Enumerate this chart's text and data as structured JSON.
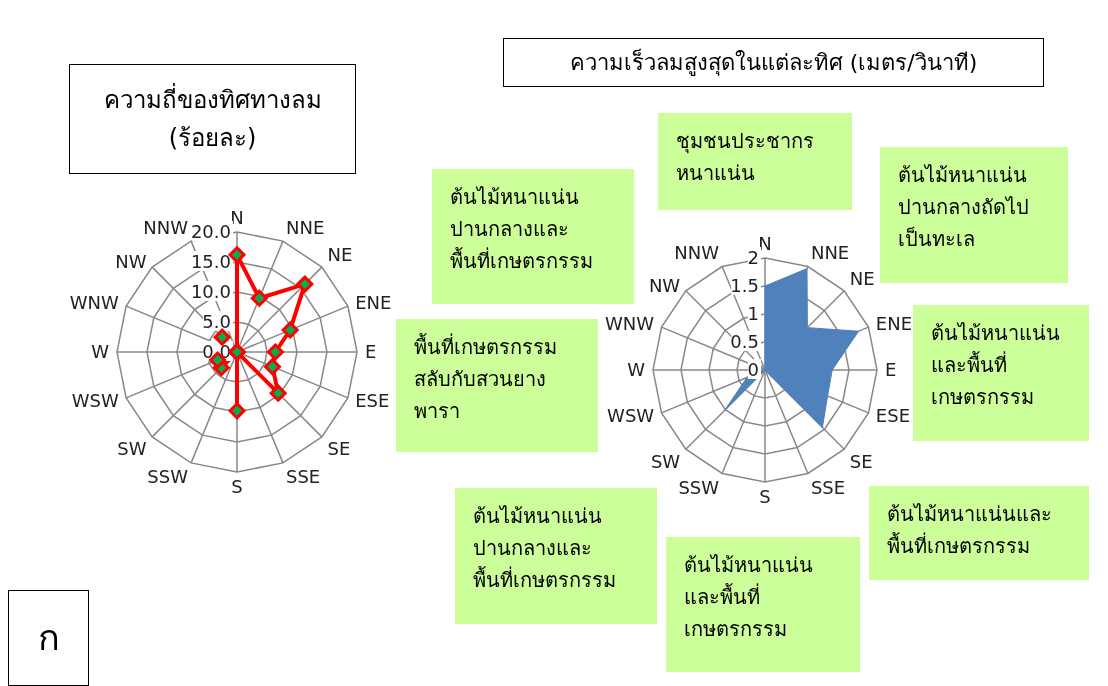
{
  "chart_data": [
    {
      "type": "radar",
      "title": "ความถี่ของทิศทางลม\n(ร้อยละ)",
      "categories": [
        "N",
        "NNE",
        "NE",
        "ENE",
        "E",
        "ESE",
        "SE",
        "SSE",
        "S",
        "SSW",
        "SW",
        "WSW",
        "W",
        "WNW",
        "NW",
        "NNW"
      ],
      "series": [
        {
          "color": "#ff0000",
          "values": [
            16.2,
            9.7,
            16.0,
            9.6,
            6.4,
            6.4,
            9.7,
            0,
            9.8,
            0,
            3.7,
            3.5,
            0,
            0,
            3.5,
            0
          ]
        }
      ],
      "ylim": [
        0,
        20
      ],
      "yticks": [
        {
          "value": 0,
          "label": "0.0"
        },
        {
          "value": 5,
          "label": "5.0"
        },
        {
          "value": 10,
          "label": "10.0"
        },
        {
          "value": 15,
          "label": "15.0"
        },
        {
          "value": 20,
          "label": "20.0"
        }
      ],
      "grid": true,
      "marker": "diamond",
      "annotations": [
        "ก"
      ]
    },
    {
      "type": "radar",
      "title": "ความเร็วลมสูงสุดในแต่ละทิศ (เมตร/วินาที)",
      "categories": [
        "N",
        "NNE",
        "NE",
        "ENE",
        "E",
        "ESE",
        "SE",
        "SSE",
        "S",
        "SSW",
        "SW",
        "WSW",
        "W",
        "WNW",
        "NW",
        "NNW"
      ],
      "series": [
        {
          "color": "#4f81bd",
          "values": [
            1.5,
            1.96,
            1.07,
            1.81,
            1.2,
            1.21,
            1.45,
            0,
            0,
            0,
            1.02,
            0.35,
            0,
            0,
            0,
            0
          ]
        }
      ],
      "ylim": [
        0,
        2
      ],
      "yticks": [
        {
          "value": 0,
          "label": "0"
        },
        {
          "value": 0.5,
          "label": "0.5"
        },
        {
          "value": 1,
          "label": "1"
        },
        {
          "value": 1.5,
          "label": "1.5"
        },
        {
          "value": 2,
          "label": "2"
        }
      ],
      "grid": true,
      "marker": "none",
      "annotations": [
        "ชุมชนประชากร\nหนาแน่น",
        "ต้นไม้หนาแน่น\nปานกลางถัดไป\nเป็นทะเล",
        "ต้นไม้หนาแน่น\nปานกลางและ\nพื้นที่เกษตรกรรม",
        "พื้นที่เกษตรกรรม\nสลับกับสวนยาง\nพารา",
        "ต้นไม้หนาแน่น\nและพื้นที่\nเกษตรกรรม",
        "ต้นไม้หนาแน่น\nปานกลางและ\nพื้นที่เกษตรกรรม",
        "ต้นไม้หนาแน่นและ\nพื้นที่เกษตรกรรม",
        "ต้นไม้หนาแน่น\nและพื้นที่\nเกษตรกรรม"
      ]
    }
  ]
}
